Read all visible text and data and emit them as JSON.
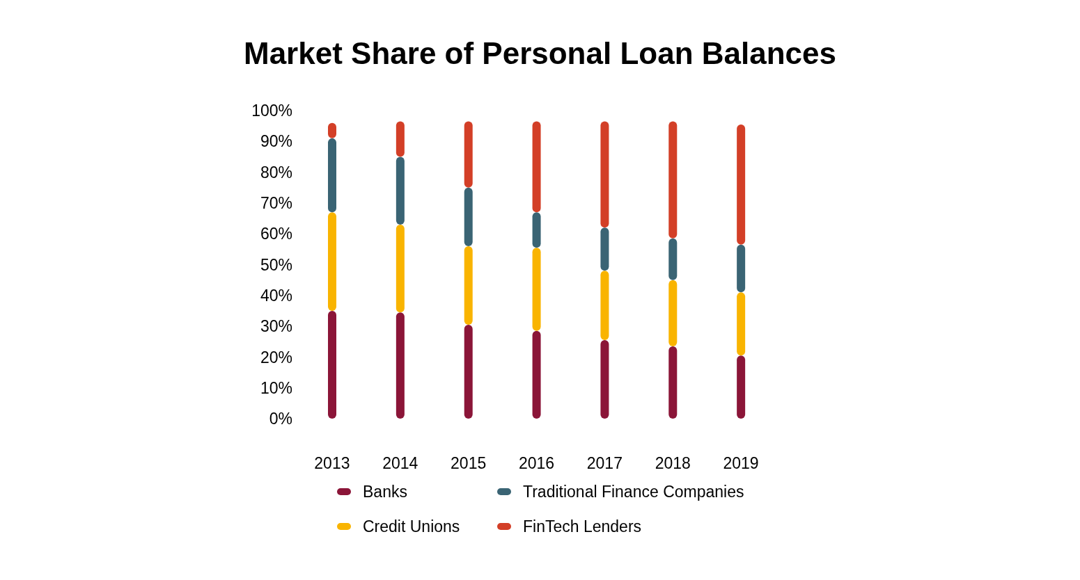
{
  "chart_data": {
    "type": "bar",
    "title": "Market Share of Personal Loan Balances",
    "stacked": true,
    "categories": [
      "2013",
      "2014",
      "2015",
      "2016",
      "2017",
      "2018",
      "2019"
    ],
    "series": [
      {
        "name": "Banks",
        "color": "#8b1538",
        "values": [
          35,
          34.5,
          30.5,
          28.5,
          25.5,
          23.5,
          20.5
        ]
      },
      {
        "name": "Credit Unions",
        "color": "#f9b400",
        "values": [
          32,
          28.5,
          25.5,
          27,
          22.5,
          21.5,
          20.5
        ]
      },
      {
        "name": "Traditional Finance Companies",
        "color": "#3a6474",
        "values": [
          24,
          22,
          19,
          11.5,
          14,
          13.5,
          15.5
        ]
      },
      {
        "name": "FinTech Lenders",
        "color": "#d33f27",
        "values": [
          5,
          11.5,
          21.5,
          29.5,
          34.5,
          38,
          39
        ]
      }
    ],
    "ylim": [
      0,
      100
    ],
    "yticks": [
      {
        "value": 0,
        "label": "0%"
      },
      {
        "value": 10,
        "label": "10%"
      },
      {
        "value": 20,
        "label": "20%"
      },
      {
        "value": 30,
        "label": "30%"
      },
      {
        "value": 40,
        "label": "40%"
      },
      {
        "value": 50,
        "label": "50%"
      },
      {
        "value": 60,
        "label": "60%"
      },
      {
        "value": 70,
        "label": "70%"
      },
      {
        "value": 80,
        "label": "80%"
      },
      {
        "value": 90,
        "label": "90%"
      },
      {
        "value": 100,
        "label": "100%"
      }
    ],
    "grid": false,
    "legend": "bottom"
  }
}
